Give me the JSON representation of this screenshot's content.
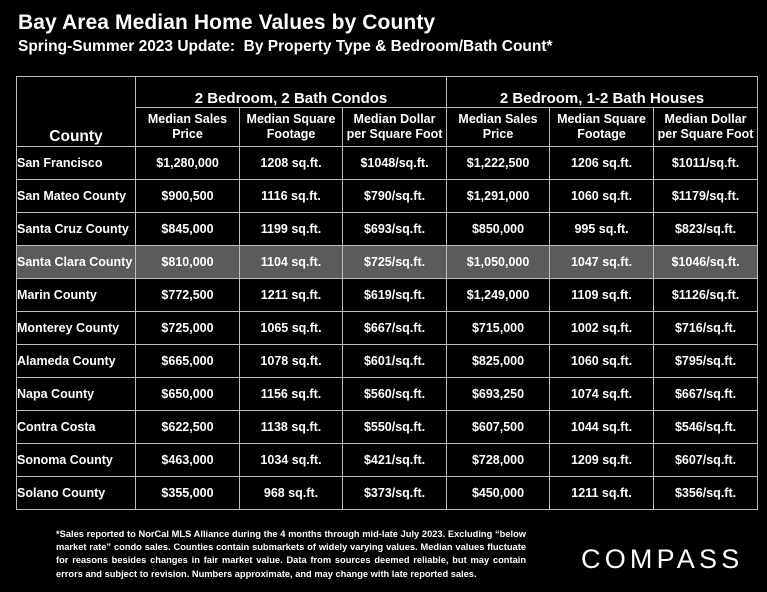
{
  "title": "Bay Area Median Home Values by County",
  "subtitle": "Spring-Summer 2023 Update:  By Property Type & Bedroom/Bath Count*",
  "table": {
    "county_header": "County",
    "group_condos": "2 Bedroom, 2 Bath Condos",
    "group_houses": "2 Bedroom, 1-2 Bath Houses",
    "sub_price_1": "Median Sales",
    "sub_price_2": "Price",
    "sub_sqft_1": "Median Square",
    "sub_sqft_2": "Footage",
    "sub_dpsf_1": "Median Dollar",
    "sub_dpsf_2": "per Square Foot",
    "rows": [
      [
        "San Francisco",
        "$1,280,000",
        "1208 sq.ft.",
        "$1048/sq.ft.",
        "$1,222,500",
        "1206 sq.ft.",
        "$1011/sq.ft."
      ],
      [
        "San Mateo County",
        "$900,500",
        "1116 sq.ft.",
        "$790/sq.ft.",
        "$1,291,000",
        "1060 sq.ft.",
        "$1179/sq.ft."
      ],
      [
        "Santa Cruz County",
        "$845,000",
        "1199 sq.ft.",
        "$693/sq.ft.",
        "$850,000",
        "995 sq.ft.",
        "$823/sq.ft."
      ],
      [
        "Santa Clara County",
        "$810,000",
        "1104 sq.ft.",
        "$725/sq.ft.",
        "$1,050,000",
        "1047 sq.ft.",
        "$1046/sq.ft."
      ],
      [
        "Marin County",
        "$772,500",
        "1211 sq.ft.",
        "$619/sq.ft.",
        "$1,249,000",
        "1109 sq.ft.",
        "$1126/sq.ft."
      ],
      [
        "Monterey County",
        "$725,000",
        "1065 sq.ft.",
        "$667/sq.ft.",
        "$715,000",
        "1002 sq.ft.",
        "$716/sq.ft."
      ],
      [
        "Alameda County",
        "$665,000",
        "1078 sq.ft.",
        "$601/sq.ft.",
        "$825,000",
        "1060 sq.ft.",
        "$795/sq.ft."
      ],
      [
        "Napa County",
        "$650,000",
        "1156 sq.ft.",
        "$560/sq.ft.",
        "$693,250",
        "1074 sq.ft.",
        "$667/sq.ft."
      ],
      [
        "Contra Costa",
        "$622,500",
        "1138 sq.ft.",
        "$550/sq.ft.",
        "$607,500",
        "1044 sq.ft.",
        "$546/sq.ft."
      ],
      [
        "Sonoma County",
        "$463,000",
        "1034 sq.ft.",
        "$421/sq.ft.",
        "$728,000",
        "1209 sq.ft.",
        "$607/sq.ft."
      ],
      [
        "Solano County",
        "$355,000",
        "968 sq.ft.",
        "$373/sq.ft.",
        "$450,000",
        "1211 sq.ft.",
        "$356/sq.ft."
      ]
    ]
  },
  "footnote": "*Sales reported to NorCal MLS Alliance during the 4 months through mid-late July 2023. Excluding “below market rate” condo sales. Counties contain submarkets of widely varying values. Median values fluctuate for reasons besides changes in fair market value. Data from sources deemed reliable, but may contain errors and subject to revision.  Numbers approximate, and may change with late reported sales.",
  "logo": "COMPASS",
  "highlight_color": "#5b5b5b",
  "highlight_row": "Santa Clara County"
}
